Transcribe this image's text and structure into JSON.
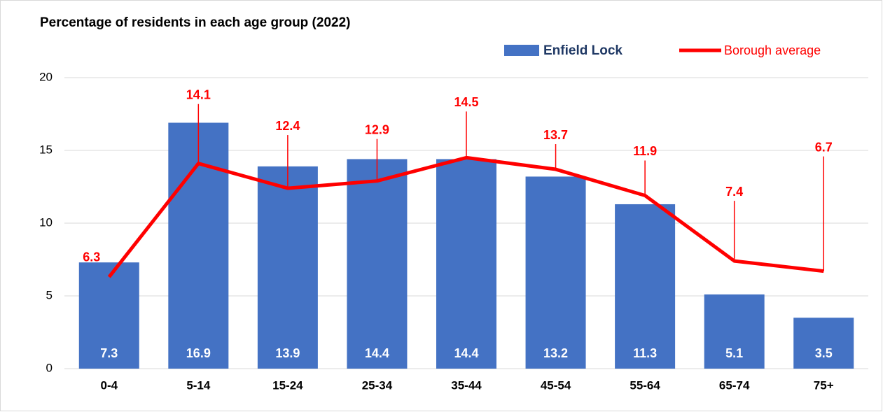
{
  "chart_data": {
    "type": "combo",
    "title": "Percentage of residents in each age group (2022)",
    "categories": [
      "0-4",
      "5-14",
      "15-24",
      "25-34",
      "35-44",
      "45-54",
      "55-64",
      "65-74",
      "75+"
    ],
    "series": [
      {
        "name": "Enfield Lock",
        "type": "bar",
        "color": "#4472c4",
        "values": [
          7.3,
          16.9,
          13.9,
          14.4,
          14.4,
          13.2,
          11.3,
          5.1,
          3.5
        ]
      },
      {
        "name": "Borough average",
        "type": "line",
        "color": "#ff0000",
        "values": [
          6.3,
          14.1,
          12.4,
          12.9,
          14.5,
          13.7,
          11.9,
          7.4,
          6.7
        ]
      }
    ],
    "ylim": [
      0,
      20
    ],
    "yticks": [
      0,
      5,
      10,
      15,
      20
    ],
    "grid": true,
    "legend": "top-right"
  }
}
